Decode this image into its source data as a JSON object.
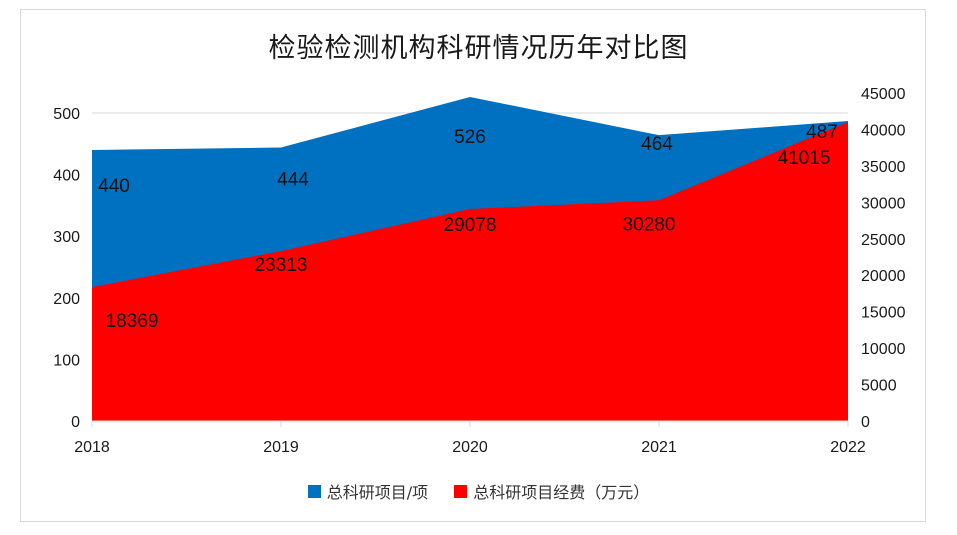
{
  "chart_data": {
    "type": "area",
    "title": "检验检测机构科研情况历年对比图",
    "categories": [
      "2018",
      "2019",
      "2020",
      "2021",
      "2022"
    ],
    "series": [
      {
        "name": "总科研项目/项",
        "axis": "left",
        "color": "#0070c0",
        "values": [
          440,
          444,
          526,
          464,
          487
        ]
      },
      {
        "name": "总科研项目经费（万元）",
        "axis": "right",
        "color": "#ff0000",
        "values": [
          18369,
          23313,
          29078,
          30280,
          41015
        ]
      }
    ],
    "y_left": {
      "min": 0,
      "max": 500,
      "ticks": [
        0,
        100,
        200,
        300,
        400,
        500
      ]
    },
    "y_right": {
      "min": 0,
      "max": 45000,
      "ticks": [
        0,
        5000,
        10000,
        15000,
        20000,
        25000,
        30000,
        35000,
        40000,
        45000
      ]
    },
    "xlabel": "",
    "ylabel": "",
    "grid": true,
    "legend_position": "bottom"
  }
}
